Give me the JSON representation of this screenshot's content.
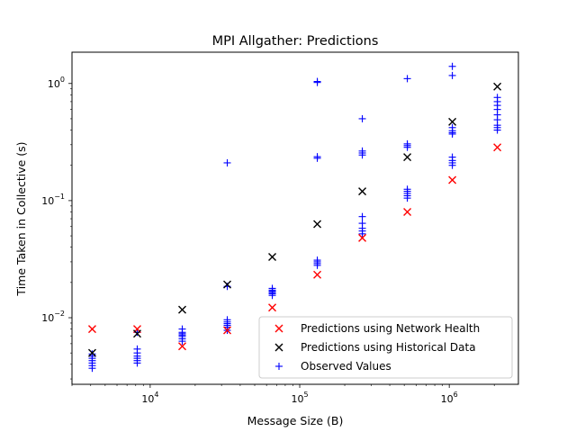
{
  "chart_data": {
    "type": "scatter",
    "title": "MPI Allgather: Predictions",
    "xlabel": "Message Size (B)",
    "ylabel": "Time Taken in Collective (s)",
    "xscale": "log",
    "yscale": "log",
    "xlim": [
      3000,
      2900000
    ],
    "ylim": [
      0.0027,
      1.85
    ],
    "x_ticks": [
      {
        "value": 10000,
        "base": "10",
        "exp": "4"
      },
      {
        "value": 100000,
        "base": "10",
        "exp": "5"
      },
      {
        "value": 1000000,
        "base": "10",
        "exp": "6"
      }
    ],
    "y_ticks": [
      {
        "value": 0.01,
        "base": "10",
        "exp": "−2"
      },
      {
        "value": 0.1,
        "base": "10",
        "exp": "−1"
      },
      {
        "value": 1,
        "base": "10",
        "exp": "0"
      }
    ],
    "grid": false,
    "legend_position": "lower-right",
    "series": [
      {
        "name": "Predictions using Network Health",
        "marker": "x",
        "color": "#ff0000",
        "points": [
          [
            4096,
            0.008
          ],
          [
            8192,
            0.008
          ],
          [
            16384,
            0.0057
          ],
          [
            32768,
            0.0078
          ],
          [
            65536,
            0.0122
          ],
          [
            131072,
            0.0233
          ],
          [
            262144,
            0.048
          ],
          [
            524288,
            0.08
          ],
          [
            1048576,
            0.15
          ],
          [
            2097152,
            0.285
          ]
        ]
      },
      {
        "name": "Predictions using Historical Data",
        "marker": "x",
        "color": "#000000",
        "points": [
          [
            4096,
            0.005
          ],
          [
            8192,
            0.0073
          ],
          [
            16384,
            0.0117
          ],
          [
            32768,
            0.0192
          ],
          [
            65536,
            0.033
          ],
          [
            131072,
            0.063
          ],
          [
            262144,
            0.12
          ],
          [
            524288,
            0.235
          ],
          [
            1048576,
            0.47
          ],
          [
            2097152,
            0.94
          ]
        ]
      },
      {
        "name": "Observed Values",
        "marker": "+",
        "color": "#0000ff",
        "points": [
          [
            4096,
            0.0037
          ],
          [
            4096,
            0.0039
          ],
          [
            4096,
            0.0041
          ],
          [
            4096,
            0.0043
          ],
          [
            4096,
            0.0045
          ],
          [
            4096,
            0.0047
          ],
          [
            4096,
            0.0049
          ],
          [
            8192,
            0.0041
          ],
          [
            8192,
            0.0043
          ],
          [
            8192,
            0.0045
          ],
          [
            8192,
            0.0047
          ],
          [
            8192,
            0.005
          ],
          [
            8192,
            0.0054
          ],
          [
            8192,
            0.0075
          ],
          [
            16384,
            0.0063
          ],
          [
            16384,
            0.0066
          ],
          [
            16384,
            0.0069
          ],
          [
            16384,
            0.0071
          ],
          [
            16384,
            0.0073
          ],
          [
            16384,
            0.0075
          ],
          [
            16384,
            0.008
          ],
          [
            32768,
            0.0078
          ],
          [
            32768,
            0.0083
          ],
          [
            32768,
            0.0086
          ],
          [
            32768,
            0.0089
          ],
          [
            32768,
            0.0092
          ],
          [
            32768,
            0.0096
          ],
          [
            32768,
            0.0185
          ],
          [
            32768,
            0.21
          ],
          [
            65536,
            0.0155
          ],
          [
            65536,
            0.016
          ],
          [
            65536,
            0.0164
          ],
          [
            65536,
            0.0168
          ],
          [
            65536,
            0.0172
          ],
          [
            65536,
            0.0178
          ],
          [
            131072,
            0.028
          ],
          [
            131072,
            0.029
          ],
          [
            131072,
            0.03
          ],
          [
            131072,
            0.031
          ],
          [
            131072,
            0.23
          ],
          [
            131072,
            0.237
          ],
          [
            131072,
            1.02
          ],
          [
            131072,
            1.04
          ],
          [
            262144,
            0.052
          ],
          [
            262144,
            0.055
          ],
          [
            262144,
            0.058
          ],
          [
            262144,
            0.064
          ],
          [
            262144,
            0.073
          ],
          [
            262144,
            0.245
          ],
          [
            262144,
            0.255
          ],
          [
            262144,
            0.265
          ],
          [
            262144,
            0.5
          ],
          [
            524288,
            0.105
          ],
          [
            524288,
            0.11
          ],
          [
            524288,
            0.115
          ],
          [
            524288,
            0.12
          ],
          [
            524288,
            0.125
          ],
          [
            524288,
            0.285
          ],
          [
            524288,
            0.295
          ],
          [
            524288,
            0.305
          ],
          [
            524288,
            1.1
          ],
          [
            1048576,
            0.2
          ],
          [
            1048576,
            0.21
          ],
          [
            1048576,
            0.22
          ],
          [
            1048576,
            0.235
          ],
          [
            1048576,
            0.37
          ],
          [
            1048576,
            0.38
          ],
          [
            1048576,
            0.395
          ],
          [
            1048576,
            0.42
          ],
          [
            1048576,
            1.17
          ],
          [
            1048576,
            1.4
          ],
          [
            2097152,
            0.4
          ],
          [
            2097152,
            0.42
          ],
          [
            2097152,
            0.44
          ],
          [
            2097152,
            0.49
          ],
          [
            2097152,
            0.54
          ],
          [
            2097152,
            0.6
          ],
          [
            2097152,
            0.65
          ],
          [
            2097152,
            0.7
          ],
          [
            2097152,
            0.76
          ]
        ]
      }
    ]
  }
}
